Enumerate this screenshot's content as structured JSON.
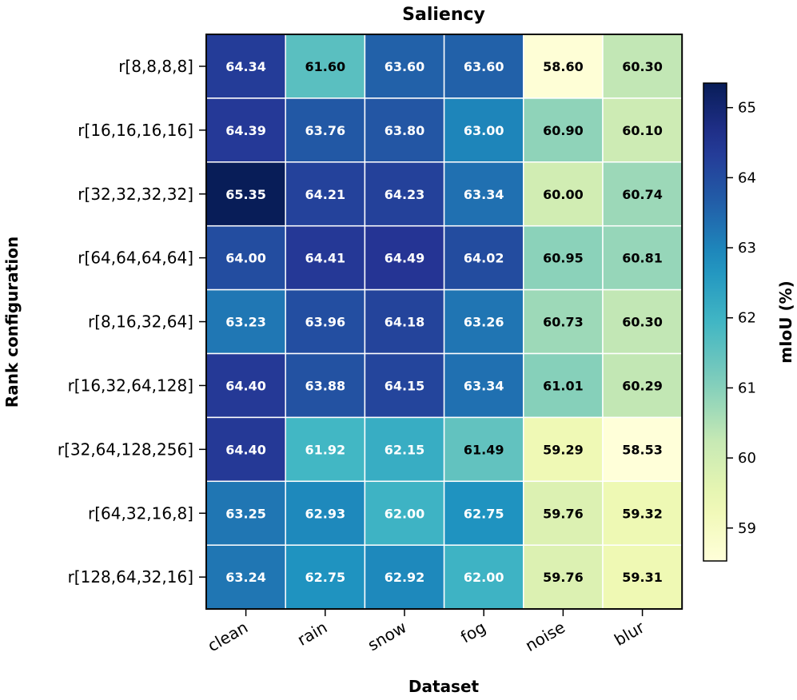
{
  "chart_data": {
    "type": "heatmap",
    "title": "Saliency",
    "xlabel": "Dataset",
    "ylabel": "Rank configuration",
    "colorbar_label": "mIoU (%)",
    "colormap": "YlGnBu",
    "x_categories": [
      "clean",
      "rain",
      "snow",
      "fog",
      "noise",
      "blur"
    ],
    "y_categories": [
      "r[8,8,8,8]",
      "r[16,16,16,16]",
      "r[32,32,32,32]",
      "r[64,64,64,64]",
      "r[8,16,32,64]",
      "r[16,32,64,128]",
      "r[32,64,128,256]",
      "r[64,32,16,8]",
      "r[128,64,32,16]"
    ],
    "values": [
      [
        64.34,
        61.6,
        63.6,
        63.6,
        58.6,
        60.3
      ],
      [
        64.39,
        63.76,
        63.8,
        63.0,
        60.9,
        60.1
      ],
      [
        65.35,
        64.21,
        64.23,
        63.34,
        60.0,
        60.74
      ],
      [
        64.0,
        64.41,
        64.49,
        64.02,
        60.95,
        60.81
      ],
      [
        63.23,
        63.96,
        64.18,
        63.26,
        60.73,
        60.3
      ],
      [
        64.4,
        63.88,
        64.15,
        63.34,
        61.01,
        60.29
      ],
      [
        64.4,
        61.92,
        62.15,
        61.49,
        59.29,
        58.53
      ],
      [
        63.25,
        62.93,
        62.0,
        62.75,
        59.76,
        59.32
      ],
      [
        63.24,
        62.75,
        62.92,
        62.0,
        59.76,
        59.31
      ]
    ],
    "colorbar_range": [
      58.53,
      65.35
    ],
    "colorbar_ticks": [
      59,
      60,
      61,
      62,
      63,
      64,
      65
    ],
    "value_format": "2-decimals",
    "grid": true,
    "legend": "colorbar-right"
  }
}
